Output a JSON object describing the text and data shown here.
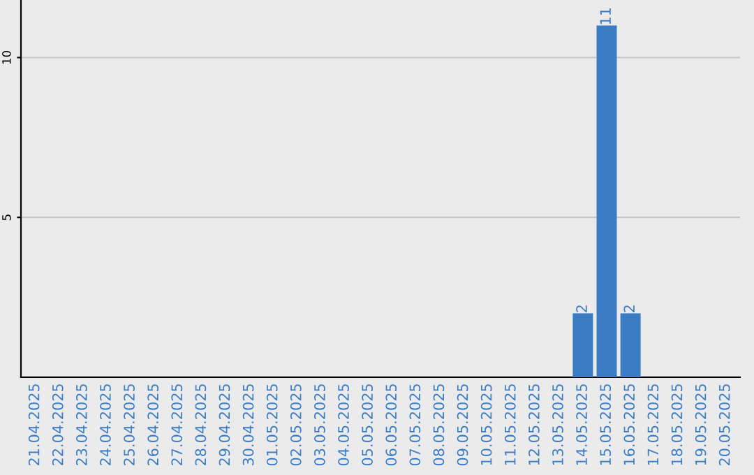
{
  "chart_data": {
    "type": "bar",
    "categories": [
      "21.04.2025",
      "22.04.2025",
      "23.04.2025",
      "24.04.2025",
      "25.04.2025",
      "26.04.2025",
      "27.04.2025",
      "28.04.2025",
      "29.04.2025",
      "30.04.2025",
      "01.05.2025",
      "02.05.2025",
      "03.05.2025",
      "04.05.2025",
      "05.05.2025",
      "06.05.2025",
      "07.05.2025",
      "08.05.2025",
      "09.05.2025",
      "10.05.2025",
      "11.05.2025",
      "12.05.2025",
      "13.05.2025",
      "14.05.2025",
      "15.05.2025",
      "16.05.2025",
      "17.05.2025",
      "18.05.2025",
      "19.05.2025",
      "20.05.2025"
    ],
    "values": [
      0,
      0,
      0,
      0,
      0,
      0,
      0,
      0,
      0,
      0,
      0,
      0,
      0,
      0,
      0,
      0,
      0,
      0,
      0,
      0,
      0,
      0,
      0,
      2,
      11,
      2,
      0,
      0,
      0,
      0
    ],
    "value_labels": [
      null,
      null,
      null,
      null,
      null,
      null,
      null,
      null,
      null,
      null,
      null,
      null,
      null,
      null,
      null,
      null,
      null,
      null,
      null,
      null,
      null,
      null,
      null,
      "2",
      "11",
      "2",
      null,
      null,
      null,
      null
    ],
    "color": "#3b7cc4",
    "ylim": [
      0,
      11.8
    ],
    "yticks": [
      5,
      10
    ],
    "grid": "y"
  }
}
